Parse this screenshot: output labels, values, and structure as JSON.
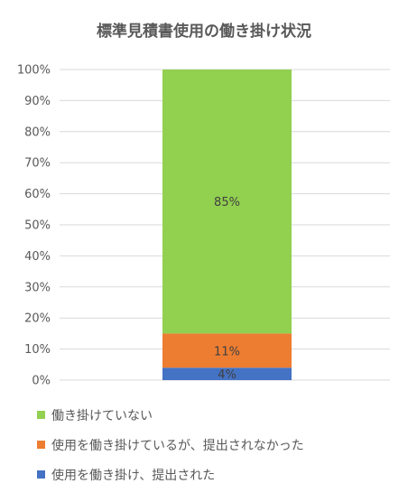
{
  "chart_data": {
    "type": "bar",
    "stacked": true,
    "title": "標準見積書使用の働き掛け状況",
    "categories": [
      ""
    ],
    "ylim": [
      0,
      100
    ],
    "y_ticks": [
      "0%",
      "10%",
      "20%",
      "30%",
      "40%",
      "50%",
      "60%",
      "70%",
      "80%",
      "90%",
      "100%"
    ],
    "grid": true,
    "legend_position": "bottom",
    "series": [
      {
        "name": "使用を働き掛け、提出された",
        "values": [
          4
        ],
        "label": "4%",
        "color": "#4472C4"
      },
      {
        "name": "使用を働き掛けているが、提出されなかった",
        "values": [
          11
        ],
        "label": "11%",
        "color": "#ED7D31"
      },
      {
        "name": "働き掛けていない",
        "values": [
          85
        ],
        "label": "85%",
        "color": "#92D050"
      }
    ],
    "legend_order": [
      2,
      1,
      0
    ]
  }
}
